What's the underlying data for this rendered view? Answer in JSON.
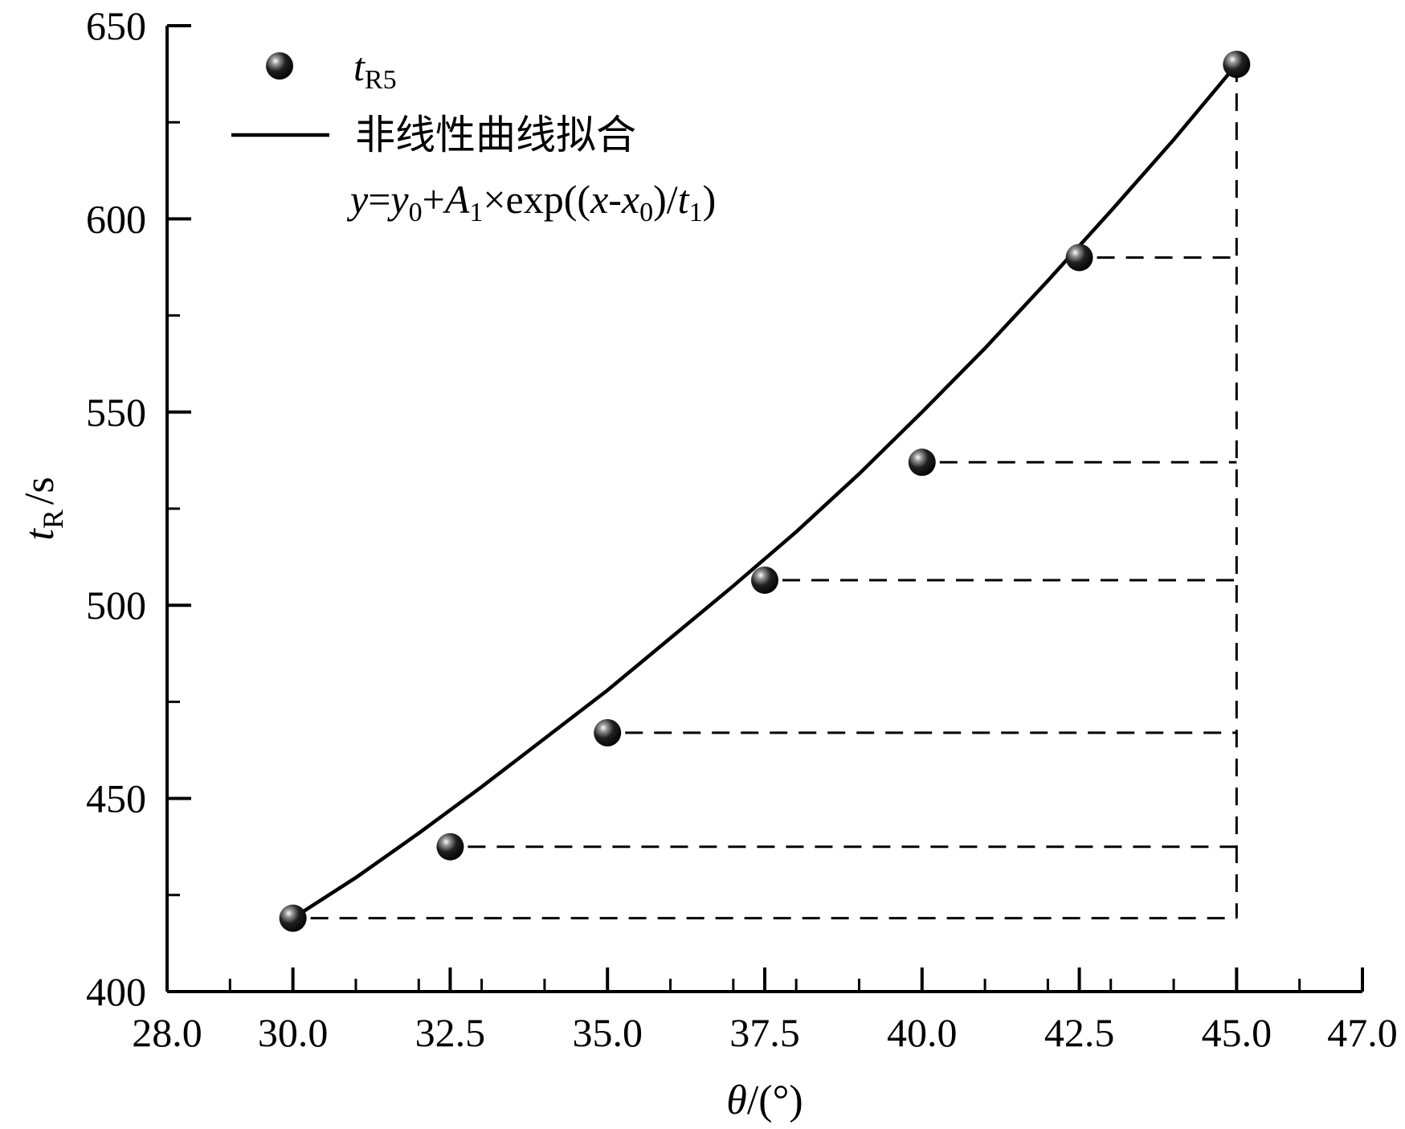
{
  "chart_data": {
    "type": "scatter",
    "xlabel": {
      "symbol": "θ",
      "rest": "/(°)"
    },
    "ylabel": {
      "base": "t",
      "sub": "R",
      "unit": "/s"
    },
    "xlim": [
      28,
      47
    ],
    "ylim": [
      400,
      650
    ],
    "xticks": [
      28,
      30,
      32.5,
      35,
      37.5,
      40,
      42.5,
      45,
      47
    ],
    "xtick_labels": [
      "28.0",
      "30.0",
      "32.5",
      "35.0",
      "37.5",
      "40.0",
      "42.5",
      "45.0",
      "47.0"
    ],
    "yticks": [
      400,
      450,
      500,
      550,
      600,
      650
    ],
    "ytick_labels": [
      "400",
      "450",
      "500",
      "550",
      "600",
      "650"
    ],
    "series": [
      {
        "name": "tR5",
        "legend_base": "t",
        "legend_sub": "R5",
        "kind": "points",
        "x": [
          30,
          32.5,
          35,
          37.5,
          40,
          42.5,
          45
        ],
        "y": [
          419,
          437.5,
          467,
          506.5,
          537,
          590,
          640
        ]
      },
      {
        "name": "非线性曲线拟合",
        "kind": "fit",
        "formula_label": "y=y0+A1×exp((x-x0)/t1)",
        "x": [
          30,
          31,
          32,
          33,
          34,
          35,
          36,
          37,
          38,
          39,
          40,
          41,
          42,
          43,
          44,
          45
        ],
        "y": [
          419,
          429.5,
          441,
          453,
          465.5,
          478,
          491.5,
          505,
          519,
          534,
          550,
          566.5,
          584,
          602,
          620.5,
          640
        ]
      }
    ],
    "reference_lines": {
      "style": "dashed",
      "vertical_at_x": 45,
      "horizontal_from_points": true
    },
    "grid": false,
    "legend_position": "top-left",
    "marker_color": "#000000",
    "line_color": "#000000"
  }
}
